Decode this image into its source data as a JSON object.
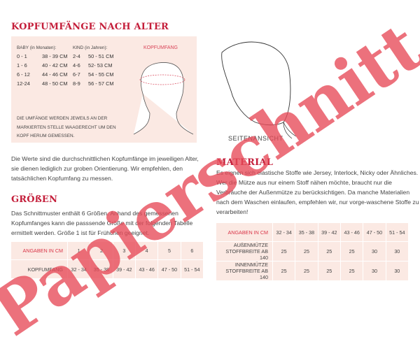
{
  "left": {
    "title": "KOPFUMFÄNGE NACH ALTER",
    "baby_header": "BABY (in Monaten):",
    "kind_header": "KIND (in Jahren):",
    "baby": [
      [
        "0 - 1",
        "38 - 39 CM"
      ],
      [
        "1 - 6",
        "40 - 42 CM"
      ],
      [
        "6 - 12",
        "44 - 46 CM"
      ],
      [
        "12-24",
        "48 - 50 CM"
      ]
    ],
    "kind": [
      [
        "2-4",
        "50 - 51 CM"
      ],
      [
        "4-6",
        "52- 53 CM"
      ],
      [
        "6-7",
        "54 - 55 CM"
      ],
      [
        "8-9",
        "56 - 57 CM"
      ]
    ],
    "diagram_label": "KOPFUMFANG",
    "note": "DIE UMFÄNGE WERDEN JEWEILS AN DER MARKIERTEN STELLE WAAGERECHT UM DEN KOPF HERUM GEMESSEN.",
    "paragraph": "Die Werte sind die durchschnittlichen Kopfumfänge im jeweiligen Alter, sie dienen lediglich zur groben  Orientierung. Wir empfehlen, den tatsächlichen Kopfumfang zu messen.",
    "sizes_title": "GRÖßEN",
    "sizes_text": "Das Schnittmuster enthält 6 Größen. Anhand des gemessenen Kopfumfanges kann die passsende Größe mit der folgenden Tabelle ermittelt werden. Größe 1 ist für Frühchen geeignet.",
    "table": {
      "corner": "ANGABEN IN CM",
      "sizes": [
        "1",
        "2",
        "3",
        "4",
        "5",
        "6"
      ],
      "row_label": "KOPFUMFANG",
      "values": [
        "32 - 34",
        "35 - 38",
        "39 - 42",
        "43 - 46",
        "47 - 50",
        "51 - 54"
      ]
    }
  },
  "right": {
    "side_view_label": "SEITENANSICHT",
    "material_title": "MATERIAL",
    "material_text": "Es eignen sich elastische Stoffe wie Jersey, Interlock, Nicky oder Ähnliches. Wer die Mütze aus nur einem Stoff nähen möchte, braucht nur die Verbräuche der Außenmütze zu berücksichtigen. Da manche Materialien nach dem Waschen einlaufen, empfehlen wir, nur vorge-waschene Stoffe zu verarbeiten!",
    "table": {
      "corner": "ANGABEN IN CM",
      "headers": [
        "32 - 34",
        "35 - 38",
        "39 - 42",
        "43 - 46",
        "47 - 50",
        "51 - 54"
      ],
      "rows": [
        {
          "label": "AUßENMÜTZE STOFFBREITE AB 140",
          "values": [
            "25",
            "25",
            "25",
            "25",
            "30",
            "30"
          ]
        },
        {
          "label": "INNENMÜTZE STOFFBREITE AB 140",
          "values": [
            "25",
            "25",
            "25",
            "25",
            "30",
            "30"
          ]
        }
      ]
    }
  },
  "watermark": "Papierschnitt",
  "colors": {
    "accent": "#c41e3a",
    "panel": "#fbe9e3",
    "watermark": "#e74a58"
  }
}
